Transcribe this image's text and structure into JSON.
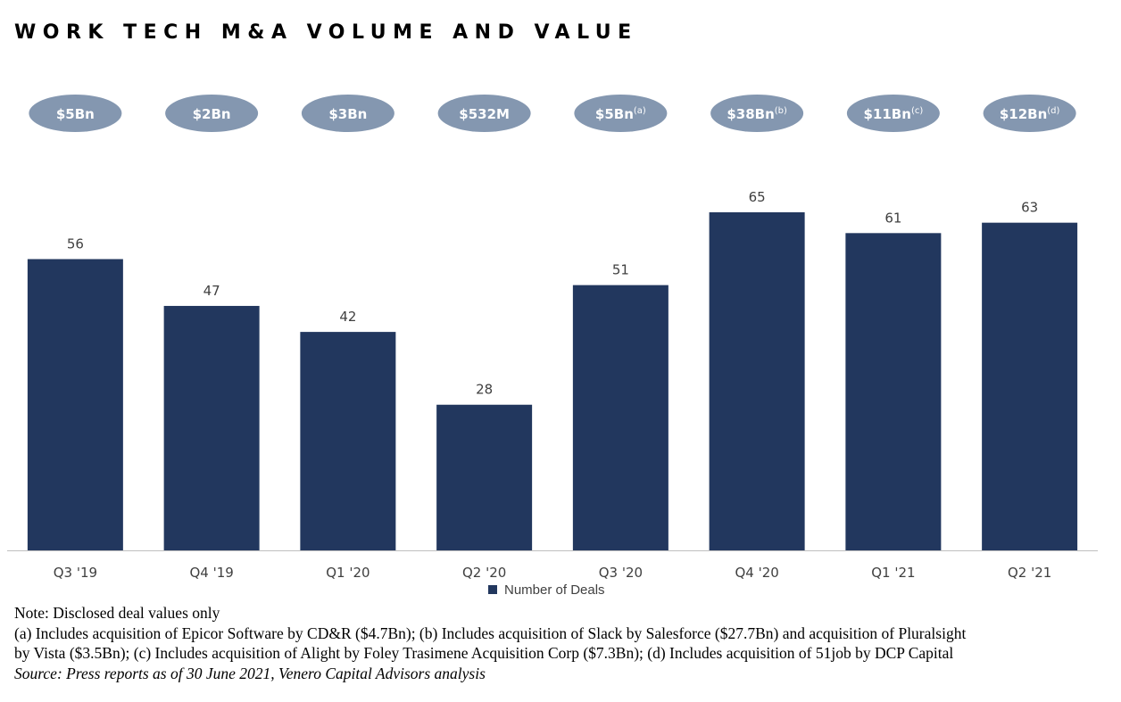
{
  "title": "WORK TECH M&A VOLUME AND VALUE",
  "colors": {
    "bar": "#22375e",
    "pill": "#8497b0",
    "axis": "#bfbfbf",
    "text": "#404040"
  },
  "chart_data": {
    "type": "bar",
    "title": "",
    "xlabel": "",
    "ylabel": "",
    "ylim": [
      0,
      80
    ],
    "grid": false,
    "categories": [
      "Q3 '19",
      "Q4 '19",
      "Q1 '20",
      "Q2 '20",
      "Q3 '20",
      "Q4 '20",
      "Q1 '21",
      "Q2 '21"
    ],
    "series": [
      {
        "name": "Number of Deals",
        "values": [
          56,
          47,
          42,
          28,
          51,
          65,
          61,
          63
        ]
      }
    ],
    "deal_values": [
      {
        "label": "$5Bn",
        "note": ""
      },
      {
        "label": "$2Bn",
        "note": ""
      },
      {
        "label": "$3Bn",
        "note": ""
      },
      {
        "label": "$532M",
        "note": ""
      },
      {
        "label": "$5Bn",
        "note": "(a)"
      },
      {
        "label": "$38Bn",
        "note": "(b)"
      },
      {
        "label": "$11Bn",
        "note": "(c)"
      },
      {
        "label": "$12Bn",
        "note": "(d)"
      }
    ],
    "legend": {
      "position": "bottom",
      "label": "Number of Deals"
    }
  },
  "notes": {
    "line1": "Note: Disclosed deal values only",
    "line2": "(a) Includes acquisition of Epicor Software by CD&R ($4.7Bn); (b) Includes acquisition of Slack by Salesforce ($27.7Bn) and acquisition of Pluralsight",
    "line3": "by Vista ($3.5Bn); (c) Includes acquisition of Alight by Foley Trasimene Acquisition Corp ($7.3Bn); (d) Includes acquisition of 51job by DCP Capital",
    "source": "Source: Press reports as of 30 June 2021, Venero Capital Advisors analysis"
  }
}
